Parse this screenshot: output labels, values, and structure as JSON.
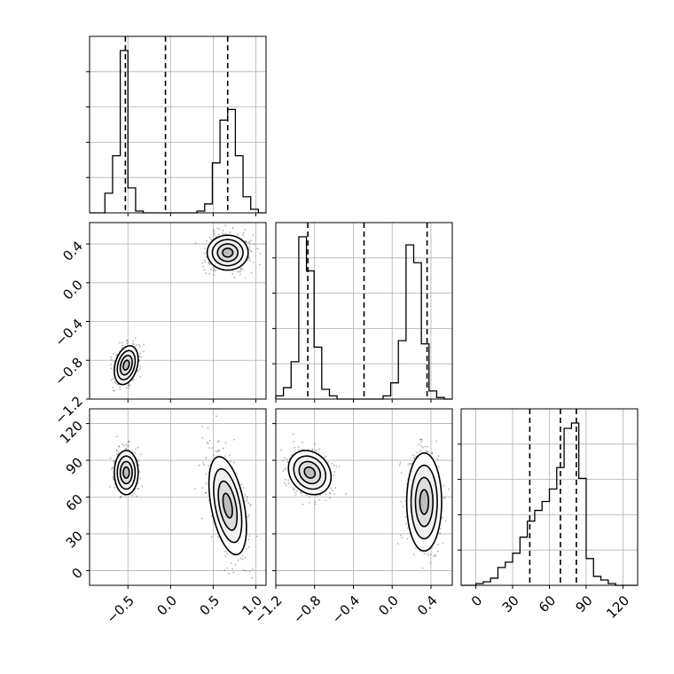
{
  "chart_data": {
    "type": "corner",
    "title": "",
    "parameters": [
      "",
      "",
      ""
    ],
    "ranges": [
      [
        -0.95,
        1.12
      ],
      [
        -1.2,
        0.62
      ],
      [
        -12,
        132
      ]
    ],
    "ticks": [
      [
        -0.5,
        0.0,
        0.5,
        1.0
      ],
      [
        -1.2,
        -0.8,
        -0.4,
        0.0,
        0.4
      ],
      [
        0,
        30,
        60,
        90,
        120
      ]
    ],
    "tick_labels": [
      [
        "−0.5",
        "0.0",
        "0.5",
        "1.0"
      ],
      [
        "−1.2",
        "−0.8",
        "−0.4",
        "0.0",
        "0.4"
      ],
      [
        "0",
        "30",
        "60",
        "90",
        "120"
      ]
    ],
    "quantiles": [
      [
        -0.53,
        -0.06,
        0.67
      ],
      [
        -0.87,
        -0.29,
        0.36
      ],
      [
        44,
        69,
        82
      ]
    ],
    "histograms": [
      {
        "edges": [
          -0.95,
          -0.86,
          -0.77,
          -0.68,
          -0.59,
          -0.5,
          -0.41,
          -0.32,
          -0.23,
          -0.14,
          -0.05,
          0.04,
          0.13,
          0.22,
          0.31,
          0.4,
          0.49,
          0.58,
          0.67,
          0.76,
          0.85,
          0.94,
          1.03,
          1.12
        ],
        "counts": [
          0,
          0,
          0.11,
          0.32,
          0.91,
          0.14,
          0.01,
          0,
          0,
          0,
          0,
          0,
          0,
          0,
          0.01,
          0.05,
          0.28,
          0.52,
          0.58,
          0.32,
          0.09,
          0.02,
          0
        ]
      },
      {
        "edges": [
          -1.2,
          -1.121,
          -1.042,
          -0.963,
          -0.884,
          -0.805,
          -0.726,
          -0.647,
          -0.568,
          -0.489,
          -0.41,
          -0.331,
          -0.252,
          -0.173,
          -0.094,
          -0.015,
          0.064,
          0.143,
          0.222,
          0.301,
          0.38,
          0.459,
          0.538,
          0.62
        ],
        "counts": [
          0.02,
          0.07,
          0.23,
          1.0,
          0.79,
          0.32,
          0.06,
          0.02,
          0,
          0,
          0,
          0,
          0,
          0,
          0.02,
          0.1,
          0.36,
          0.95,
          0.84,
          0.34,
          0.05,
          0.01,
          0
        ]
      },
      {
        "edges": [
          -12,
          -6,
          0,
          6,
          12,
          18,
          24,
          30,
          36,
          42,
          48,
          54,
          60,
          66,
          72,
          78,
          84,
          90,
          96,
          102,
          108,
          114,
          120,
          132
        ],
        "counts": [
          0,
          0,
          0.01,
          0.02,
          0.04,
          0.1,
          0.13,
          0.18,
          0.27,
          0.36,
          0.42,
          0.47,
          0.54,
          0.66,
          0.88,
          0.91,
          0.6,
          0.15,
          0.05,
          0.03,
          0.01,
          0,
          0
        ]
      }
    ],
    "pairs": [
      {
        "x": 0,
        "y": 1,
        "clusters": [
          {
            "cx": -0.52,
            "cy": -0.85,
            "sx": 0.07,
            "sy": 0.1,
            "rho": 0.3,
            "n": 520
          },
          {
            "cx": 0.67,
            "cy": 0.31,
            "sx": 0.12,
            "sy": 0.09,
            "rho": 0.0,
            "n": 620
          }
        ]
      },
      {
        "x": 0,
        "y": 2,
        "clusters": [
          {
            "cx": -0.52,
            "cy": 80,
            "sx": 0.07,
            "sy": 9,
            "rho": 0.0,
            "n": 520
          },
          {
            "cx": 0.67,
            "cy": 53,
            "sx": 0.11,
            "sy": 20,
            "rho": -0.45,
            "n": 680
          }
        ]
      },
      {
        "x": 1,
        "y": 2,
        "clusters": [
          {
            "cx": -0.85,
            "cy": 80,
            "sx": 0.11,
            "sy": 9,
            "rho": -0.2,
            "n": 520
          },
          {
            "cx": 0.33,
            "cy": 56,
            "sx": 0.09,
            "sy": 20,
            "rho": 0.0,
            "n": 680
          }
        ]
      }
    ],
    "grid": true,
    "legend": false
  }
}
